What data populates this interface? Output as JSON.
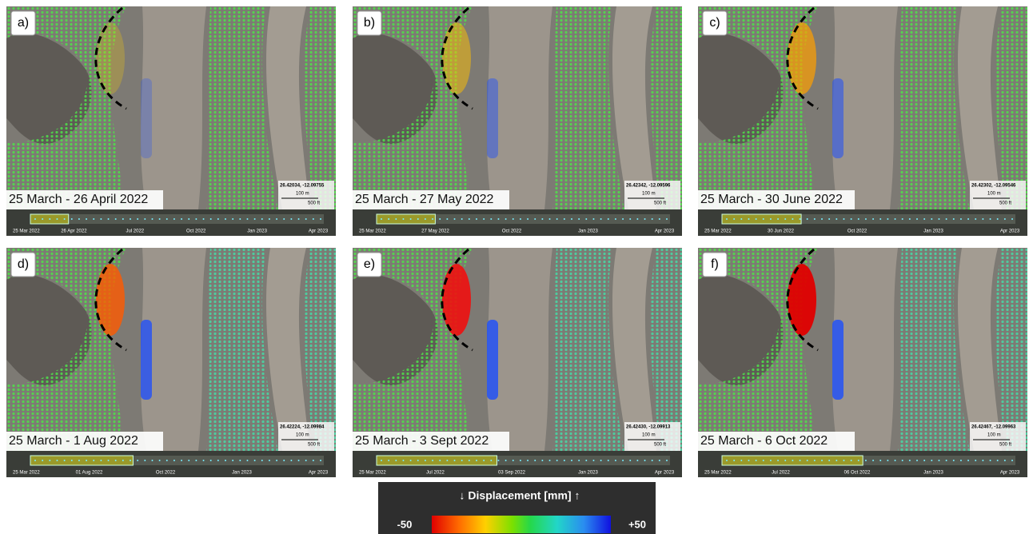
{
  "panels": [
    {
      "label": "a)",
      "caption": "25 March - 26 April 2022",
      "coordinates": "26.42034, -12.09755",
      "scale": [
        "100 m",
        "500 ft"
      ],
      "timeline": [
        "25 Mar 2022",
        "26 Apr 2022",
        "Jul 2022",
        "Oct 2022",
        "Jan 2023",
        "Apr 2023"
      ]
    },
    {
      "label": "b)",
      "caption": "25 March - 27 May 2022",
      "coordinates": "26.42342, -12.09596",
      "scale": [
        "100 m",
        "500 ft"
      ],
      "timeline": [
        "25 Mar 2022",
        "27 May 2022",
        "Oct 2022",
        "Jan 2023",
        "Apr 2023"
      ]
    },
    {
      "label": "c)",
      "caption": "25 March - 30 June 2022",
      "coordinates": "26.42302, -12.09546",
      "scale": [
        "100 m",
        "500 ft"
      ],
      "timeline": [
        "25 Mar 2022",
        "30 Jun 2022",
        "Oct 2022",
        "Jan 2023",
        "Apr 2023"
      ]
    },
    {
      "label": "d)",
      "caption": "25 March - 1 Aug 2022",
      "coordinates": "26.42224, -12.09984",
      "scale": [
        "100 m",
        "500 ft"
      ],
      "timeline": [
        "25 Mar 2022",
        "01 Aug 2022",
        "Oct 2022",
        "Jan 2023",
        "Apr 2023"
      ]
    },
    {
      "label": "e)",
      "caption": "25 March - 3 Sept 2022",
      "coordinates": "26.42430, -12.09913",
      "scale": [
        "100 m",
        "500 ft"
      ],
      "timeline": [
        "25 Mar 2022",
        "Jul 2022",
        "03 Sep 2022",
        "Jan 2023",
        "Apr 2023"
      ]
    },
    {
      "label": "f)",
      "caption": "25 March - 6 Oct 2022",
      "coordinates": "26.42467, -12.09963",
      "scale": [
        "100 m",
        "500 ft"
      ],
      "timeline": [
        "25 Mar 2022",
        "Jul 2022",
        "06 Oct 2022",
        "Jan 2023",
        "Apr 2023"
      ]
    }
  ],
  "legend": {
    "title": "↓ Displacement [mm] ↑",
    "min_label": "-50",
    "max_label": "+50"
  }
}
